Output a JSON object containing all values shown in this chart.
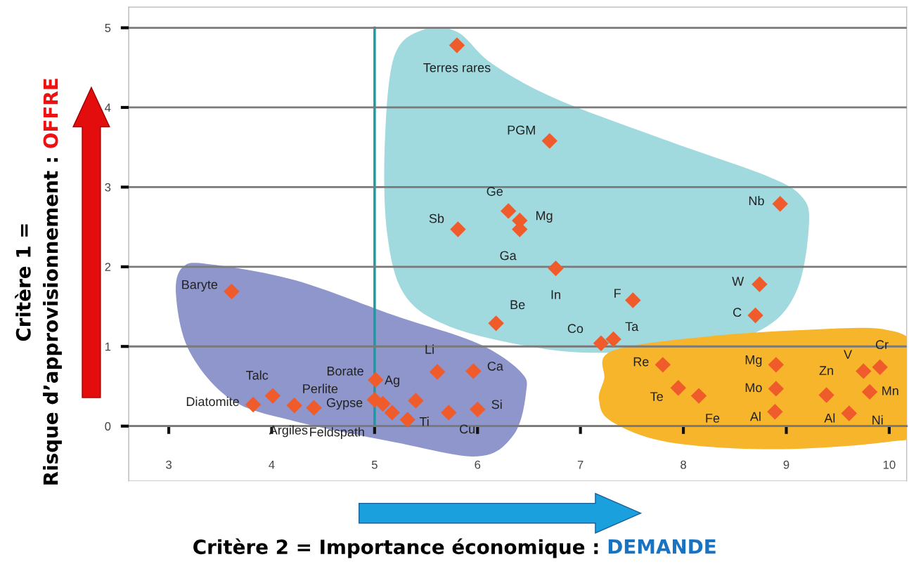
{
  "chart_data": {
    "type": "scatter",
    "xlabel": "Critère 2 = Importance économique : DEMANDE",
    "ylabel": "Critère 1 =\nRisque d’approvisionnement : OFFRE",
    "x": [
      5.8,
      6.7,
      6.3,
      6.41,
      6.41,
      5.81,
      8.94,
      6.76,
      8.74,
      7.51,
      8.7,
      6.18,
      7.2,
      7.32,
      3.61,
      5.61,
      5.96,
      5.01,
      4.01,
      3.82,
      4.22,
      4.41,
      5.0,
      5.08,
      5.17,
      5.4,
      5.32,
      5.72,
      6.0,
      7.8,
      7.95,
      8.15,
      8.9,
      8.9,
      8.89,
      9.39,
      9.61,
      9.75,
      9.91,
      9.81
    ],
    "series": [
      {
        "color": "#ef5b2b",
        "values": [
          4.78,
          3.58,
          2.7,
          2.58,
          2.47,
          2.47,
          2.79,
          1.98,
          1.78,
          1.58,
          1.39,
          1.29,
          1.04,
          1.09,
          1.69,
          0.68,
          0.69,
          0.58,
          0.38,
          0.27,
          0.26,
          0.23,
          0.33,
          0.28,
          0.17,
          0.32,
          0.08,
          0.17,
          0.21,
          0.77,
          0.48,
          0.38,
          0.77,
          0.47,
          0.18,
          0.39,
          0.16,
          0.69,
          0.74,
          0.43
        ]
      }
    ],
    "marker": "diamond",
    "xlim": [
      2.61,
      10.17
    ],
    "ylim": [
      -0.69,
      5.26
    ],
    "xticks": [
      3,
      4,
      5,
      6,
      7,
      8,
      9,
      10
    ],
    "yticks": [
      0,
      1,
      2,
      3,
      4,
      5
    ],
    "grid": "y",
    "ref_lines": [
      {
        "axis": "x",
        "value": 5,
        "color": "#1a9ba0"
      }
    ],
    "annotations": [
      {
        "text": "Terres rares",
        "x": 5.8,
        "y": 4.78
      },
      {
        "text": "PGM",
        "x": 6.7,
        "y": 3.58
      },
      {
        "text": "Ge",
        "x": 6.3,
        "y": 2.7
      },
      {
        "text": "Mg",
        "x": 6.41,
        "y": 2.58
      },
      {
        "text": "Ga",
        "x": 6.41,
        "y": 2.47
      },
      {
        "text": "Sb",
        "x": 5.81,
        "y": 2.47
      },
      {
        "text": "Nb",
        "x": 8.94,
        "y": 2.79
      },
      {
        "text": "In",
        "x": 6.76,
        "y": 1.98
      },
      {
        "text": "W",
        "x": 8.74,
        "y": 1.78
      },
      {
        "text": "F",
        "x": 7.51,
        "y": 1.58
      },
      {
        "text": "C",
        "x": 8.7,
        "y": 1.39
      },
      {
        "text": "Be",
        "x": 6.18,
        "y": 1.29
      },
      {
        "text": "Co",
        "x": 7.2,
        "y": 1.04
      },
      {
        "text": "Ta",
        "x": 7.32,
        "y": 1.09
      },
      {
        "text": "Baryte",
        "x": 3.61,
        "y": 1.69
      },
      {
        "text": "Li",
        "x": 5.61,
        "y": 0.68
      },
      {
        "text": "Ca",
        "x": 5.96,
        "y": 0.69
      },
      {
        "text": "Borate",
        "x": 5.01,
        "y": 0.58
      },
      {
        "text": "Talc",
        "x": 4.01,
        "y": 0.38
      },
      {
        "text": "Diatomite",
        "x": 3.82,
        "y": 0.27
      },
      {
        "text": "Perlite",
        "x": 4.22,
        "y": 0.26
      },
      {
        "text": "Argiles",
        "x": 4.41,
        "y": 0.23
      },
      {
        "text": "Gypse",
        "x": 5.0,
        "y": 0.33
      },
      {
        "text": "Feldspath",
        "x": 5.08,
        "y": 0.28
      },
      {
        "text": "Ag",
        "x": 5.4,
        "y": 0.32
      },
      {
        "text": "Ti",
        "x": 5.32,
        "y": 0.08
      },
      {
        "text": "Cu",
        "x": 5.72,
        "y": 0.17
      },
      {
        "text": "Si",
        "x": 6.0,
        "y": 0.21
      },
      {
        "text": "Re",
        "x": 7.8,
        "y": 0.77
      },
      {
        "text": "Te",
        "x": 7.95,
        "y": 0.48
      },
      {
        "text": "Fe",
        "x": 8.15,
        "y": 0.38
      },
      {
        "text": "Mg",
        "x": 8.9,
        "y": 0.77
      },
      {
        "text": "Mo",
        "x": 8.9,
        "y": 0.47
      },
      {
        "text": "Al",
        "x": 8.89,
        "y": 0.18
      },
      {
        "text": "Zn",
        "x": 9.39,
        "y": 0.39
      },
      {
        "text": "Al",
        "x": 9.61,
        "y": 0.16
      },
      {
        "text": "V",
        "x": 9.75,
        "y": 0.69
      },
      {
        "text": "Cr",
        "x": 9.91,
        "y": 0.74
      },
      {
        "text": "Mn",
        "x": 9.81,
        "y": 0.43
      },
      {
        "text": "Ni",
        "x": 9.81,
        "y": 0.43
      }
    ]
  }
}
